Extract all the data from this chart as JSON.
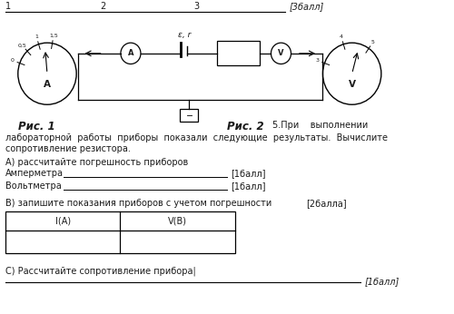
{
  "bg_color": "#ffffff",
  "top_score_text": "[3балл]",
  "fig1_label": "Рис. 1",
  "fig2_label": "Рис. 2",
  "section_a_title": "А) рассчитайте погрешность приборов",
  "ammeter_label": "Амперметра",
  "ammeter_score": "[1балл]",
  "voltmeter_label": "Вольтметра",
  "voltmeter_score": "[1балл]",
  "section_b_title": "В) запишите показания приборов с учетом погрешности",
  "section_b_score": "[2балла]",
  "table_col1": "I(A)",
  "table_col2": "V(B)",
  "section_c_title": "С) Рассчитайте сопротивление прибора",
  "section_c_score": "[1балл]",
  "emf_label": "ε, r",
  "text_color": "#1a1a1a",
  "line_color": "#000000"
}
